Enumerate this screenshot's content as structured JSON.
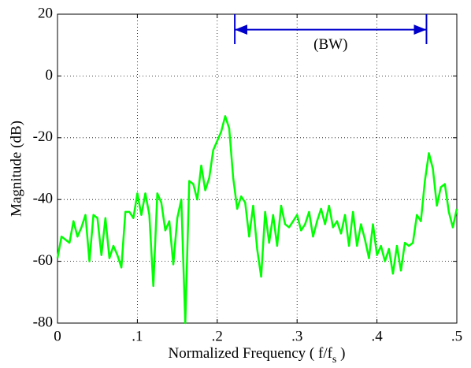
{
  "chart_data": {
    "type": "line",
    "ylabel": "Magnitude (dB)",
    "xlabel": {
      "text": "Normalized Frequency  ( f/f",
      "sub": "s",
      "end": " )"
    },
    "x": [
      0,
      0.005,
      0.01,
      0.015,
      0.02,
      0.025,
      0.03,
      0.035,
      0.04,
      0.045,
      0.05,
      0.055,
      0.06,
      0.065,
      0.07,
      0.075,
      0.08,
      0.085,
      0.09,
      0.095,
      0.1,
      0.105,
      0.11,
      0.115,
      0.12,
      0.125,
      0.13,
      0.135,
      0.14,
      0.145,
      0.15,
      0.155,
      0.16,
      0.165,
      0.17,
      0.175,
      0.18,
      0.185,
      0.19,
      0.195,
      0.2,
      0.205,
      0.21,
      0.215,
      0.22,
      0.225,
      0.23,
      0.235,
      0.24,
      0.245,
      0.25,
      0.255,
      0.26,
      0.265,
      0.27,
      0.275,
      0.28,
      0.285,
      0.29,
      0.295,
      0.3,
      0.305,
      0.31,
      0.315,
      0.32,
      0.325,
      0.33,
      0.335,
      0.34,
      0.345,
      0.35,
      0.355,
      0.36,
      0.365,
      0.37,
      0.375,
      0.38,
      0.385,
      0.39,
      0.395,
      0.4,
      0.405,
      0.41,
      0.415,
      0.42,
      0.425,
      0.43,
      0.435,
      0.44,
      0.445,
      0.45,
      0.455,
      0.46,
      0.465,
      0.47,
      0.475,
      0.48,
      0.485,
      0.49,
      0.495,
      0.5
    ],
    "values": [
      -59,
      -52,
      -53,
      -54,
      -47,
      -52,
      -49,
      -45,
      -60,
      -45,
      -46,
      -58,
      -46,
      -59,
      -55,
      -58,
      -62,
      -44,
      -44,
      -46,
      -38,
      -45,
      -38,
      -45,
      -68,
      -38,
      -41,
      -50,
      -47,
      -61,
      -46,
      -40,
      -80,
      -34,
      -35,
      -40,
      -29,
      -37,
      -33,
      -24,
      -21,
      -18,
      -13,
      -17,
      -33,
      -43,
      -39,
      -41,
      -52,
      -42,
      -56,
      -65,
      -44,
      -54,
      -45,
      -55,
      -42,
      -48,
      -49,
      -47,
      -45,
      -50,
      -48,
      -44,
      -52,
      -47,
      -43,
      -48,
      -42,
      -49,
      -47,
      -51,
      -45,
      -55,
      -44,
      -55,
      -48,
      -53,
      -59,
      -48,
      -58,
      -55,
      -60,
      -56,
      -64,
      -55,
      -63,
      -54,
      -55,
      -54,
      -45,
      -47,
      -34,
      -25,
      -30,
      -42,
      -36,
      -35,
      -44,
      -49,
      -43
    ],
    "color": "#00ff00",
    "xlim": [
      0,
      0.5
    ],
    "xticks": [
      0,
      {
        "value": 0.1,
        "label": ".1"
      },
      {
        "value": 0.2,
        "label": ".2"
      },
      {
        "value": 0.3,
        "label": ".3"
      },
      {
        "value": 0.4,
        "label": ".4"
      },
      {
        "value": 0.5,
        "label": ".5"
      }
    ],
    "ylim": [
      -80,
      20
    ],
    "yticks": [
      -80,
      -60,
      -40,
      -20,
      0,
      20
    ],
    "grid": true,
    "bandwidth": {
      "label": "(BW)",
      "start": 0.222,
      "end": 0.462,
      "y": 15,
      "color": "#0000cc"
    }
  }
}
